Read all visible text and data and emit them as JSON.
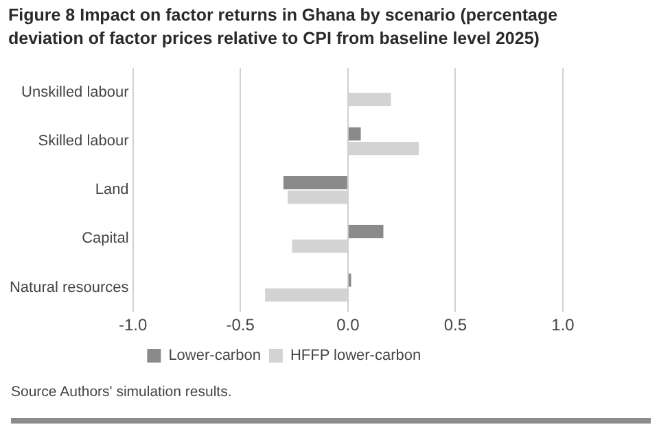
{
  "chart_data": {
    "type": "bar",
    "orientation": "horizontal",
    "title": "Figure 8 Impact on factor returns in Ghana by scenario (percentage deviation of factor prices relative to CPI from baseline level 2025)",
    "categories": [
      "Unskilled labour",
      "Skilled labour",
      "Land",
      "Capital",
      "Natural resources"
    ],
    "series": [
      {
        "name": "Lower-carbon",
        "color": "#8a8a8a",
        "values": [
          0,
          0.06,
          -0.3,
          0.165,
          0.015
        ]
      },
      {
        "name": "HFFP lower-carbon",
        "color": "#d3d3d3",
        "values": [
          0.2,
          0.33,
          -0.28,
          -0.26,
          -0.385
        ]
      }
    ],
    "xlim": [
      -1,
      1
    ],
    "xticks": [
      {
        "value": -1,
        "label": "-1.0"
      },
      {
        "value": -0.5,
        "label": "-0.5"
      },
      {
        "value": 0,
        "label": "0.0"
      },
      {
        "value": 0.5,
        "label": "0.5"
      },
      {
        "value": 1,
        "label": "1.0"
      }
    ],
    "grid": "x",
    "legend": "bottom",
    "annotations": [
      "Source Authors' simulation results."
    ]
  }
}
